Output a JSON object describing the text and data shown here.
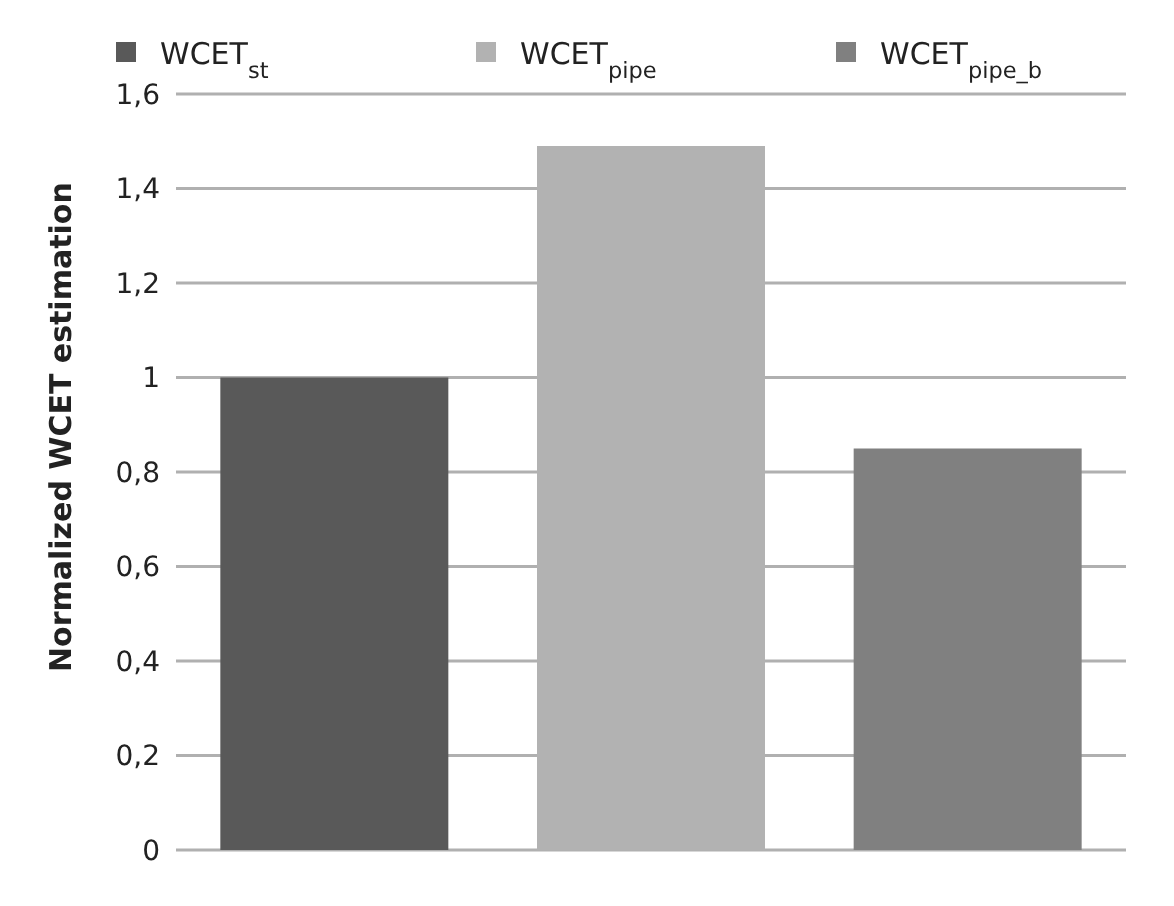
{
  "chart_data": {
    "type": "bar",
    "ylabel": "Normalized WCET estimation",
    "categories": [
      null,
      null,
      null
    ],
    "stacked": true,
    "series": [
      {
        "name": "WCET$_{st}$",
        "color": "#595959",
        "values": [
          1.0,
          null,
          null
        ]
      },
      {
        "name": "WCET$_{pipe}$",
        "color": "#b2b2b2",
        "values": [
          null,
          1.49,
          null
        ]
      },
      {
        "name": "WCET$_{pipe_b}$",
        "color": "#808080",
        "values": [
          null,
          null,
          0.85
        ]
      }
    ],
    "ylim": [
      0,
      1.6
    ],
    "yticks": [
      0,
      {
        "value": 0.2,
        "label": "0,2"
      },
      {
        "value": 0.4,
        "label": "0,4"
      },
      {
        "value": 0.6,
        "label": "0,6"
      },
      {
        "value": 0.8,
        "label": "0,8"
      },
      1,
      {
        "value": 1.2,
        "label": "1,2"
      },
      {
        "value": 1.4,
        "label": "1,4"
      },
      {
        "value": 1.6,
        "label": "1,6"
      }
    ],
    "grid": "y",
    "legend": "top"
  }
}
